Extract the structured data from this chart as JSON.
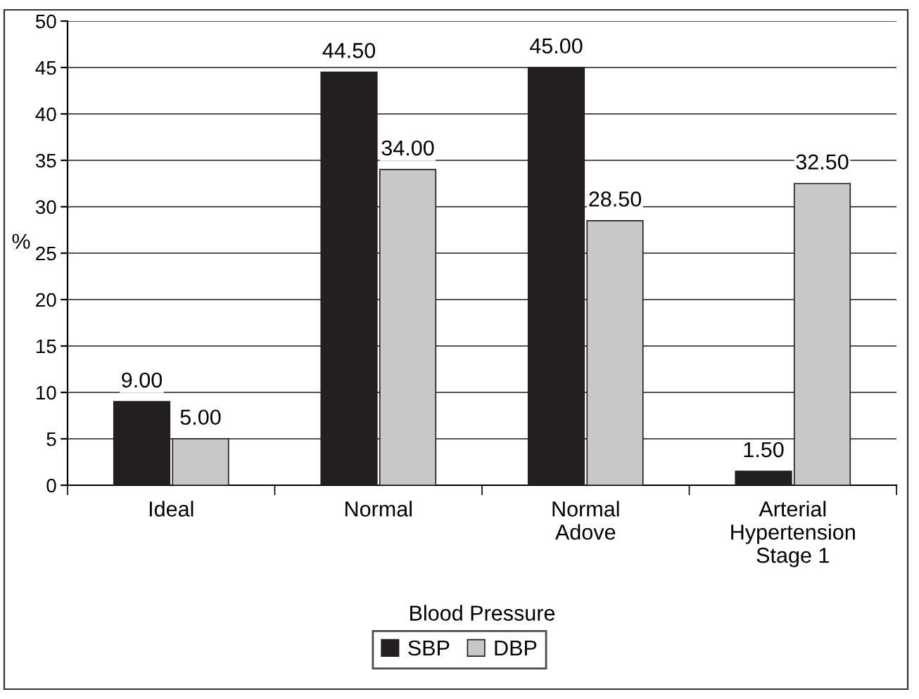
{
  "chart_data": {
    "type": "bar",
    "xlabel": "Blood Pressure",
    "ylabel": "%",
    "categories": [
      "Ideal",
      "Normal",
      "Normal\nAdove",
      "Arterial\nHypertension\nStage 1"
    ],
    "series": [
      {
        "name": "SBP",
        "color": "#231f20",
        "values": [
          9.0,
          44.5,
          45.0,
          1.5
        ],
        "value_labels": [
          "9.00",
          "44.50",
          "45.00",
          "1.50"
        ]
      },
      {
        "name": "DBP",
        "color": "#c8c8c8",
        "values": [
          5.0,
          34.0,
          28.5,
          32.5
        ],
        "value_labels": [
          "5.00",
          "34.00",
          "28.50",
          "32.50"
        ]
      }
    ],
    "ylim": [
      0,
      50
    ],
    "yticks": [
      0,
      5,
      10,
      15,
      20,
      25,
      30,
      35,
      40,
      45,
      50
    ],
    "grid": "y",
    "legend": "bottom"
  }
}
